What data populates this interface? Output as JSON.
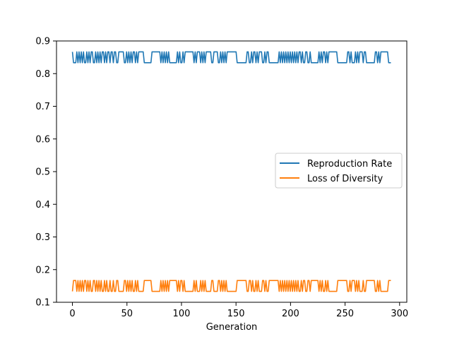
{
  "chart_data": {
    "type": "line",
    "xlabel": "Generation",
    "ylabel": "",
    "xlim": [
      -14.6,
      306.6
    ],
    "ylim": [
      0.1,
      0.9
    ],
    "xticks": [
      0,
      50,
      100,
      150,
      200,
      250,
      300
    ],
    "yticks": [
      0.1,
      0.2,
      0.3,
      0.4,
      0.5,
      0.6,
      0.7,
      0.8,
      0.9
    ],
    "grid": false,
    "legend": {
      "placement": "center-right"
    },
    "x_range": [
      0,
      292
    ],
    "series": [
      {
        "name": "Reproduction Rate",
        "color": "#1f77b4",
        "levels": [
          0.8667,
          0.8333
        ],
        "values": [
          0.8667,
          0.8333,
          0.8333,
          0.8333,
          0.8667,
          0.8333,
          0.8667,
          0.8333,
          0.8667,
          0.8333,
          0.8667,
          0.8333,
          0.8333,
          0.8667,
          0.8333,
          0.8667,
          0.8333,
          0.8667,
          0.8667,
          0.8333,
          0.8333,
          0.8667,
          0.8333,
          0.8667,
          0.8333,
          0.8667,
          0.8333,
          0.8667,
          0.8667,
          0.8333,
          0.8667,
          0.8333,
          0.8667,
          0.8667,
          0.8333,
          0.8667,
          0.8667,
          0.8333,
          0.8667,
          0.8667,
          0.8333,
          0.8333,
          0.8667,
          0.8667,
          0.8667,
          0.8667,
          0.8667,
          0.8333,
          0.8333,
          0.8667,
          0.8333,
          0.8667,
          0.8333,
          0.8667,
          0.8333,
          0.8667,
          0.8667,
          0.8333,
          0.8667,
          0.8333,
          0.8667,
          0.8667,
          0.8667,
          0.8667,
          0.8667,
          0.8333,
          0.8333,
          0.8333,
          0.8333,
          0.8333,
          0.8333,
          0.8333,
          0.8667,
          0.8667,
          0.8667,
          0.8667,
          0.8667,
          0.8667,
          0.8667,
          0.8667,
          0.8333,
          0.8667,
          0.8333,
          0.8667,
          0.8333,
          0.8667,
          0.8333,
          0.8667,
          0.8333,
          0.8333,
          0.8333,
          0.8333,
          0.8333,
          0.8333,
          0.8333,
          0.8667,
          0.8333,
          0.8667,
          0.8333,
          0.8333,
          0.8667,
          0.8333,
          0.8667,
          0.8667,
          0.8667,
          0.8667,
          0.8667,
          0.8667,
          0.8667,
          0.8667,
          0.8333,
          0.8667,
          0.8333,
          0.8667,
          0.8667,
          0.8667,
          0.8333,
          0.8667,
          0.8333,
          0.8667,
          0.8333,
          0.8667,
          0.8667,
          0.8667,
          0.8667,
          0.8667,
          0.8333,
          0.8333,
          0.8667,
          0.8667,
          0.8667,
          0.8667,
          0.8333,
          0.8333,
          0.8667,
          0.8333,
          0.8667,
          0.8333,
          0.8667,
          0.8333,
          0.8667,
          0.8667,
          0.8667,
          0.8667,
          0.8667,
          0.8667,
          0.8667,
          0.8667,
          0.8667,
          0.8333,
          0.8333,
          0.8333,
          0.8333,
          0.8333,
          0.8333,
          0.8333,
          0.8333,
          0.8333,
          0.8667,
          0.8667,
          0.8333,
          0.8333,
          0.8667,
          0.8333,
          0.8667,
          0.8667,
          0.8333,
          0.8667,
          0.8333,
          0.8667,
          0.8667,
          0.8667,
          0.8333,
          0.8333,
          0.8667,
          0.8333,
          0.8667,
          0.8667,
          0.8333,
          0.8333,
          0.8333,
          0.8333,
          0.8333,
          0.8333,
          0.8333,
          0.8333,
          0.8333,
          0.8667,
          0.8333,
          0.8667,
          0.8333,
          0.8667,
          0.8333,
          0.8667,
          0.8333,
          0.8667,
          0.8333,
          0.8667,
          0.8333,
          0.8667,
          0.8333,
          0.8667,
          0.8333,
          0.8667,
          0.8333,
          0.8667,
          0.8667,
          0.8333,
          0.8667,
          0.8333,
          0.8333,
          0.8667,
          0.8667,
          0.8333,
          0.8333,
          0.8667,
          0.8333,
          0.8333,
          0.8333,
          0.8333,
          0.8333,
          0.8333,
          0.8333,
          0.8667,
          0.8333,
          0.8667,
          0.8333,
          0.8667,
          0.8667,
          0.8333,
          0.8667,
          0.8333,
          0.8667,
          0.8667,
          0.8667,
          0.8667,
          0.8667,
          0.8667,
          0.8667,
          0.8667,
          0.8333,
          0.8333,
          0.8333,
          0.8333,
          0.8333,
          0.8333,
          0.8333,
          0.8333,
          0.8333,
          0.8667,
          0.8667,
          0.8333,
          0.8667,
          0.8333,
          0.8333,
          0.8333,
          0.8667,
          0.8333,
          0.8667,
          0.8333,
          0.8667,
          0.8667,
          0.8667,
          0.8333,
          0.8667,
          0.8667,
          0.8333,
          0.8333,
          0.8333,
          0.8333,
          0.8333,
          0.8333,
          0.8333,
          0.8333,
          0.8667,
          0.8667,
          0.8333,
          0.8667,
          0.8333,
          0.8667,
          0.8667,
          0.8667,
          0.8667,
          0.8667,
          0.8667,
          0.8667,
          0.8333,
          0.8333,
          0.8333
        ]
      },
      {
        "name": "Loss of Diversity",
        "color": "#ff7f0e",
        "levels": [
          0.1667,
          0.1333
        ],
        "values": [
          0.1333,
          0.1667,
          0.1667,
          0.1667,
          0.1333,
          0.1667,
          0.1333,
          0.1667,
          0.1333,
          0.1667,
          0.1333,
          0.1667,
          0.1667,
          0.1333,
          0.1667,
          0.1333,
          0.1667,
          0.1333,
          0.1333,
          0.1667,
          0.1667,
          0.1333,
          0.1667,
          0.1333,
          0.1667,
          0.1333,
          0.1667,
          0.1333,
          0.1333,
          0.1667,
          0.1333,
          0.1667,
          0.1333,
          0.1333,
          0.1667,
          0.1333,
          0.1333,
          0.1667,
          0.1333,
          0.1333,
          0.1667,
          0.1667,
          0.1333,
          0.1333,
          0.1333,
          0.1333,
          0.1333,
          0.1667,
          0.1667,
          0.1333,
          0.1667,
          0.1333,
          0.1667,
          0.1333,
          0.1667,
          0.1333,
          0.1333,
          0.1667,
          0.1333,
          0.1667,
          0.1333,
          0.1333,
          0.1333,
          0.1333,
          0.1333,
          0.1667,
          0.1667,
          0.1667,
          0.1667,
          0.1667,
          0.1667,
          0.1667,
          0.1333,
          0.1333,
          0.1333,
          0.1333,
          0.1333,
          0.1333,
          0.1333,
          0.1333,
          0.1667,
          0.1333,
          0.1667,
          0.1333,
          0.1667,
          0.1333,
          0.1667,
          0.1333,
          0.1667,
          0.1667,
          0.1667,
          0.1667,
          0.1667,
          0.1667,
          0.1667,
          0.1333,
          0.1667,
          0.1333,
          0.1667,
          0.1667,
          0.1333,
          0.1667,
          0.1333,
          0.1333,
          0.1333,
          0.1333,
          0.1333,
          0.1333,
          0.1333,
          0.1333,
          0.1667,
          0.1333,
          0.1667,
          0.1333,
          0.1333,
          0.1333,
          0.1667,
          0.1333,
          0.1667,
          0.1333,
          0.1667,
          0.1333,
          0.1333,
          0.1333,
          0.1333,
          0.1333,
          0.1667,
          0.1667,
          0.1333,
          0.1333,
          0.1333,
          0.1333,
          0.1667,
          0.1667,
          0.1333,
          0.1667,
          0.1333,
          0.1667,
          0.1333,
          0.1667,
          0.1333,
          0.1333,
          0.1333,
          0.1333,
          0.1333,
          0.1333,
          0.1333,
          0.1333,
          0.1333,
          0.1667,
          0.1667,
          0.1667,
          0.1667,
          0.1667,
          0.1667,
          0.1667,
          0.1667,
          0.1667,
          0.1333,
          0.1333,
          0.1667,
          0.1667,
          0.1333,
          0.1667,
          0.1333,
          0.1333,
          0.1667,
          0.1333,
          0.1667,
          0.1333,
          0.1333,
          0.1333,
          0.1667,
          0.1667,
          0.1333,
          0.1667,
          0.1333,
          0.1333,
          0.1667,
          0.1667,
          0.1667,
          0.1667,
          0.1667,
          0.1667,
          0.1667,
          0.1667,
          0.1667,
          0.1333,
          0.1667,
          0.1333,
          0.1667,
          0.1333,
          0.1667,
          0.1333,
          0.1667,
          0.1333,
          0.1667,
          0.1333,
          0.1667,
          0.1333,
          0.1667,
          0.1333,
          0.1667,
          0.1333,
          0.1667,
          0.1333,
          0.1333,
          0.1667,
          0.1333,
          0.1667,
          0.1667,
          0.1333,
          0.1333,
          0.1667,
          0.1667,
          0.1333,
          0.1667,
          0.1667,
          0.1667,
          0.1667,
          0.1667,
          0.1667,
          0.1667,
          0.1333,
          0.1667,
          0.1333,
          0.1667,
          0.1333,
          0.1333,
          0.1667,
          0.1333,
          0.1667,
          0.1333,
          0.1333,
          0.1333,
          0.1333,
          0.1333,
          0.1333,
          0.1333,
          0.1333,
          0.1667,
          0.1667,
          0.1667,
          0.1667,
          0.1667,
          0.1667,
          0.1667,
          0.1667,
          0.1667,
          0.1333,
          0.1333,
          0.1667,
          0.1333,
          0.1667,
          0.1667,
          0.1667,
          0.1333,
          0.1667,
          0.1333,
          0.1667,
          0.1333,
          0.1333,
          0.1333,
          0.1667,
          0.1333,
          0.1333,
          0.1667,
          0.1667,
          0.1667,
          0.1667,
          0.1667,
          0.1667,
          0.1667,
          0.1667,
          0.1333,
          0.1333,
          0.1667,
          0.1333,
          0.1667,
          0.1333,
          0.1333,
          0.1333,
          0.1333,
          0.1333,
          0.1333,
          0.1333,
          0.1667,
          0.1667,
          0.1667
        ]
      }
    ]
  }
}
